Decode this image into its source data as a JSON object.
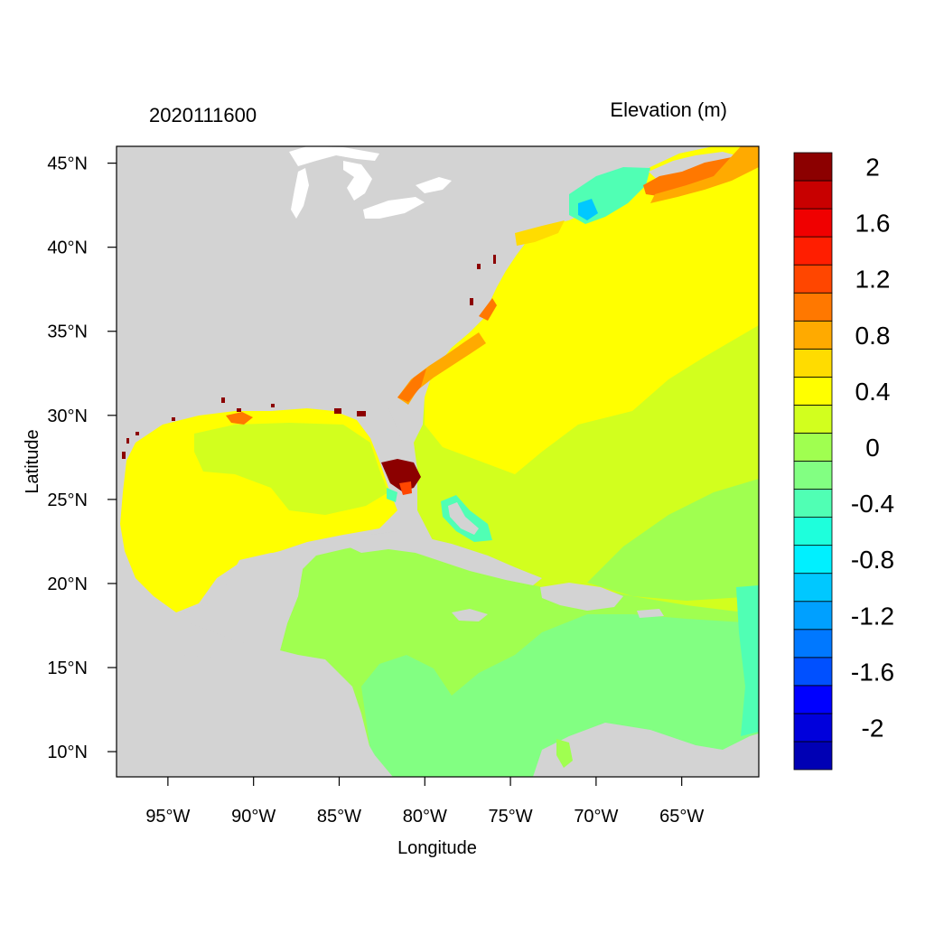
{
  "header": {
    "date_label": "2020111600",
    "variable_label": "Elevation (m)"
  },
  "axes": {
    "xlabel": "Longitude",
    "ylabel": "Latitude",
    "lon_range": [
      -98,
      -60.5
    ],
    "lat_range": [
      8.5,
      46
    ],
    "x_ticks": [
      {
        "value": -95,
        "label": "95°W"
      },
      {
        "value": -90,
        "label": "90°W"
      },
      {
        "value": -85,
        "label": "85°W"
      },
      {
        "value": -80,
        "label": "80°W"
      },
      {
        "value": -75,
        "label": "75°W"
      },
      {
        "value": -70,
        "label": "70°W"
      },
      {
        "value": -65,
        "label": "65°W"
      }
    ],
    "y_ticks": [
      {
        "value": 45,
        "label": "45°N"
      },
      {
        "value": 40,
        "label": "40°N"
      },
      {
        "value": 35,
        "label": "35°N"
      },
      {
        "value": 30,
        "label": "30°N"
      },
      {
        "value": 25,
        "label": "25°N"
      },
      {
        "value": 20,
        "label": "20°N"
      },
      {
        "value": 15,
        "label": "15°N"
      },
      {
        "value": 10,
        "label": "10°N"
      }
    ]
  },
  "legend": {
    "title": "Elevation (m)",
    "placement": "right",
    "colors": [
      "#0000b4",
      "#0000dc",
      "#0000ff",
      "#0050ff",
      "#0078ff",
      "#00a0ff",
      "#00c8ff",
      "#00f0ff",
      "#1effdc",
      "#50ffb4",
      "#82ff82",
      "#a0ff50",
      "#d2ff1e",
      "#ffff00",
      "#ffdc00",
      "#ffaa00",
      "#ff7800",
      "#ff4600",
      "#ff1e00",
      "#f00000",
      "#c80000",
      "#8c0000"
    ],
    "labels": [
      {
        "text": "2",
        "boundary": 21
      },
      {
        "text": "1.6",
        "boundary": 19
      },
      {
        "text": "1.2",
        "boundary": 17
      },
      {
        "text": "0.8",
        "boundary": 15
      },
      {
        "text": "0.4",
        "boundary": 13
      },
      {
        "text": "0",
        "boundary": 11
      },
      {
        "text": "-0.4",
        "boundary": 9
      },
      {
        "text": "-0.8",
        "boundary": 7
      },
      {
        "text": "-1.2",
        "boundary": 5
      },
      {
        "text": "-1.6",
        "boundary": 3
      },
      {
        "text": "-2",
        "boundary": 1
      }
    ]
  },
  "colors": {
    "land": "#d3d3d3",
    "unmapped_water": "#ffffff",
    "frame": "#000000"
  }
}
